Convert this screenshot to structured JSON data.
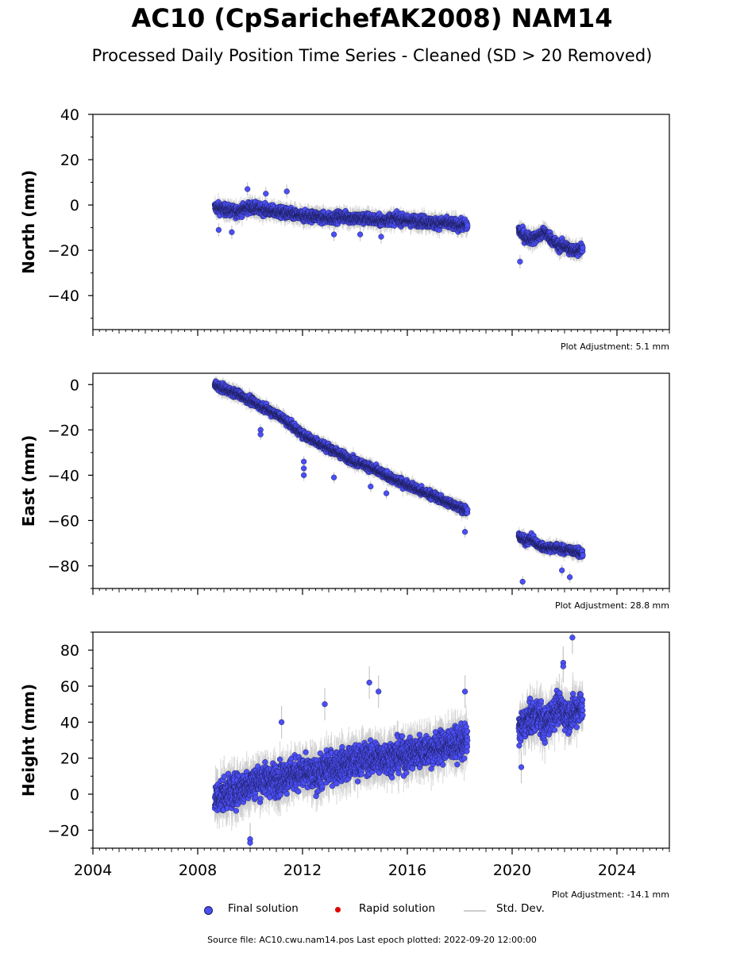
{
  "title": "AC10 (CpSarichefAK2008) NAM14",
  "subtitle": "Processed Daily Position Time Series - Cleaned (SD > 20 Removed)",
  "legend": {
    "final": "Final solution",
    "rapid": "Rapid solution",
    "stddev": "Std. Dev."
  },
  "footer": "Source file: AC10.cwu.nam14.pos  Last epoch plotted: 2022-09-20 12:00:00",
  "colors": {
    "final": "#4b4ff5",
    "final_edge": "#1a1a50",
    "rapid": "#e00000",
    "stddev": "#c8c8c8"
  },
  "chart_data": [
    {
      "type": "scatter",
      "ylabel": "North (mm)",
      "xlim": [
        2004,
        2026
      ],
      "ylim": [
        -55,
        40
      ],
      "yticks": [
        40,
        20,
        0,
        -20,
        -40
      ],
      "adjustment": "Plot Adjustment: 5.1 mm",
      "series": [
        {
          "name": "Final solution",
          "segments": [
            {
              "x": [
                2008.65,
                2009.0,
                2009.5,
                2010.0,
                2010.5,
                2011.0,
                2011.5,
                2012.0,
                2012.5,
                2013.0,
                2013.5,
                2014.0,
                2014.5,
                2015.0,
                2015.5,
                2016.0,
                2016.5,
                2017.0,
                2017.5,
                2018.0,
                2018.3
              ],
              "y": [
                -1,
                -2,
                -3,
                -1,
                -2,
                -3,
                -4,
                -5,
                -5,
                -6,
                -5,
                -6,
                -6,
                -7,
                -6,
                -7,
                -7,
                -8,
                -8,
                -9,
                -9
              ]
            },
            {
              "x": [
                2020.25,
                2020.5,
                2020.75,
                2021.0,
                2021.25,
                2021.5,
                2021.75,
                2022.0,
                2022.25,
                2022.5,
                2022.7
              ],
              "y": [
                -11,
                -14,
                -15,
                -14,
                -12,
                -15,
                -18,
                -18,
                -20,
                -20,
                -19
              ]
            }
          ]
        }
      ],
      "outliers": {
        "x": [
          2009.9,
          2010.6,
          2011.4,
          2008.8,
          2013.2,
          2014.2,
          2015.0,
          2009.3,
          2020.3
        ],
        "y": [
          7,
          5,
          6,
          -11,
          -13,
          -13,
          -14,
          -12,
          -25
        ]
      }
    },
    {
      "type": "scatter",
      "ylabel": "East (mm)",
      "xlim": [
        2004,
        2026
      ],
      "ylim": [
        -90,
        5
      ],
      "yticks": [
        0,
        -20,
        -40,
        -60,
        -80
      ],
      "adjustment": "Plot Adjustment: 28.8 mm",
      "series": [
        {
          "name": "Final solution",
          "segments": [
            {
              "x": [
                2008.65,
                2009.0,
                2009.5,
                2010.0,
                2010.5,
                2011.0,
                2011.5,
                2012.0,
                2012.5,
                2013.0,
                2013.5,
                2014.0,
                2014.5,
                2015.0,
                2015.5,
                2016.0,
                2016.5,
                2017.0,
                2017.5,
                2018.0,
                2018.3
              ],
              "y": [
                0,
                -2,
                -4,
                -7,
                -10,
                -13,
                -17,
                -22,
                -25,
                -28,
                -31,
                -34,
                -36,
                -39,
                -42,
                -44,
                -47,
                -49,
                -52,
                -54,
                -56
              ]
            },
            {
              "x": [
                2020.25,
                2020.5,
                2020.75,
                2021.0,
                2021.25,
                2021.5,
                2021.75,
                2022.0,
                2022.25,
                2022.5,
                2022.7
              ],
              "y": [
                -67,
                -69,
                -68,
                -71,
                -72,
                -72,
                -72,
                -73,
                -73,
                -74,
                -75
              ]
            }
          ]
        }
      ],
      "outliers": {
        "x": [
          2010.4,
          2010.4,
          2012.05,
          2012.05,
          2012.05,
          2013.2,
          2014.6,
          2015.2,
          2018.2,
          2020.4,
          2022.2,
          2021.9
        ],
        "y": [
          -20,
          -22,
          -34,
          -37,
          -40,
          -41,
          -45,
          -48,
          -65,
          -87,
          -85,
          -82
        ]
      }
    },
    {
      "type": "scatter",
      "ylabel": "Height (mm)",
      "xlim": [
        2004,
        2026
      ],
      "ylim": [
        -30,
        90
      ],
      "yticks": [
        80,
        60,
        40,
        20,
        0,
        -20
      ],
      "xticks": [
        2004,
        2008,
        2012,
        2016,
        2020,
        2024
      ],
      "adjustment": "Plot Adjustment: -14.1 mm",
      "series": [
        {
          "name": "Final solution",
          "segments": [
            {
              "x": [
                2008.65,
                2009.0,
                2009.5,
                2010.0,
                2010.5,
                2011.0,
                2011.5,
                2012.0,
                2012.5,
                2013.0,
                2013.5,
                2014.0,
                2014.5,
                2015.0,
                2015.5,
                2016.0,
                2016.5,
                2017.0,
                2017.5,
                2018.0,
                2018.3
              ],
              "y": [
                -2,
                0,
                2,
                6,
                8,
                8,
                11,
                12,
                10,
                15,
                16,
                18,
                20,
                20,
                21,
                22,
                24,
                25,
                27,
                28,
                30
              ]
            },
            {
              "x": [
                2020.25,
                2020.5,
                2020.75,
                2021.0,
                2021.25,
                2021.5,
                2021.75,
                2022.0,
                2022.25,
                2022.5,
                2022.7
              ],
              "y": [
                36,
                40,
                42,
                45,
                38,
                44,
                48,
                45,
                44,
                47,
                50
              ]
            }
          ]
        }
      ],
      "outliers": {
        "x": [
          2010.0,
          2010.0,
          2014.55,
          2014.9,
          2012.85,
          2018.2,
          2022.3,
          2021.95,
          2021.95,
          2020.35,
          2011.2
        ],
        "y": [
          -25,
          -27,
          62,
          57,
          50,
          57,
          87,
          73,
          71,
          15,
          40
        ]
      }
    }
  ]
}
